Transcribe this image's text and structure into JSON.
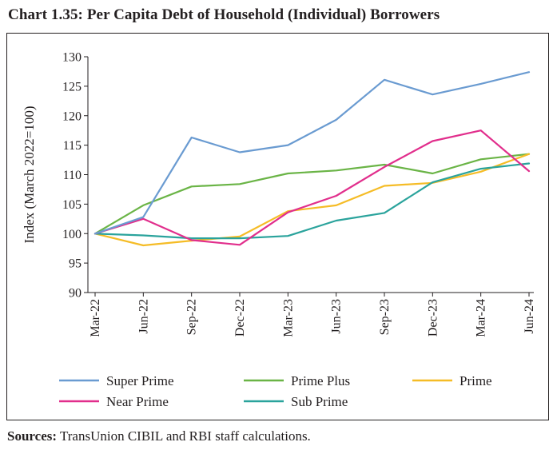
{
  "title": "Chart 1.35: Per Capita Debt of Household (Individual) Borrowers",
  "source_label": "Sources:",
  "source_text": "TransUnion CIBIL and RBI staff calculations.",
  "chart_data": {
    "type": "line",
    "title": "Chart 1.35: Per Capita Debt of Household (Individual) Borrowers",
    "ylabel": "Index (March 2022=100)",
    "xlabel": "",
    "ylim": [
      90,
      130
    ],
    "yticks": [
      90,
      95,
      100,
      105,
      110,
      115,
      120,
      125,
      130
    ],
    "categories": [
      "Mar-22",
      "Jun-22",
      "Sep-22",
      "Dec-22",
      "Mar-23",
      "Jun-23",
      "Sep-23",
      "Dec-23",
      "Mar-24",
      "Jun-24"
    ],
    "grid": false,
    "legend_position": "bottom",
    "series": [
      {
        "name": "Super Prime",
        "color": "#6a9bd1",
        "values": [
          100,
          102.8,
          116.3,
          113.8,
          115.0,
          119.3,
          126.1,
          123.6,
          125.4,
          127.4
        ]
      },
      {
        "name": "Prime Plus",
        "color": "#6ab446",
        "values": [
          100,
          104.8,
          108.0,
          108.4,
          110.2,
          110.7,
          111.7,
          110.2,
          112.6,
          113.5
        ]
      },
      {
        "name": "Prime",
        "color": "#f5bc26",
        "values": [
          100,
          98.0,
          98.8,
          99.5,
          103.8,
          104.8,
          108.1,
          108.6,
          110.5,
          113.5
        ]
      },
      {
        "name": "Near Prime",
        "color": "#e12e8c",
        "values": [
          100,
          102.5,
          98.9,
          98.1,
          103.6,
          106.4,
          111.3,
          115.7,
          117.5,
          110.6
        ]
      },
      {
        "name": "Sub Prime",
        "color": "#2aa39c",
        "values": [
          100,
          99.7,
          99.2,
          99.2,
          99.6,
          102.2,
          103.5,
          108.7,
          111.0,
          111.9
        ]
      }
    ]
  }
}
